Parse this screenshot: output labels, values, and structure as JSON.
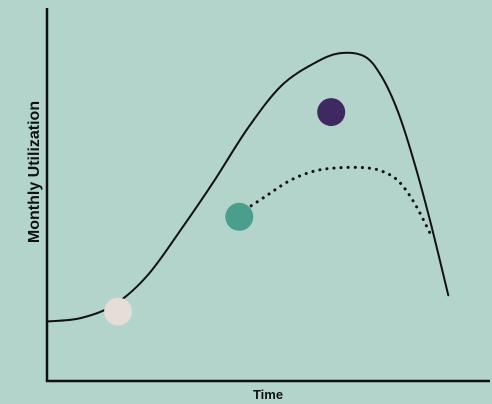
{
  "chart_data": {
    "type": "line",
    "xlabel": "Time",
    "ylabel": "Monthly Utilization",
    "xlim": [
      0,
      100
    ],
    "ylim": [
      0,
      100
    ],
    "grid": false,
    "series": [
      {
        "style": "solid",
        "x": [
          0,
          8,
          16,
          24,
          32,
          40,
          48,
          56,
          64,
          70,
          76,
          80,
          84,
          88,
          92,
          96
        ],
        "y": [
          17,
          18,
          22,
          31,
          45,
          60,
          76,
          89,
          96,
          99,
          98,
          92,
          81,
          65,
          46,
          25
        ]
      },
      {
        "style": "dotted",
        "x": [
          46,
          52,
          58,
          64,
          70,
          76,
          80,
          84,
          88,
          92
        ],
        "y": [
          50,
          55,
          60,
          63,
          64,
          64,
          63,
          60,
          53,
          43
        ]
      }
    ],
    "markers": [
      {
        "x": 17,
        "y": 20,
        "color": "#e4ddd8"
      },
      {
        "x": 46,
        "y": 49,
        "color": "#4a9e8b"
      },
      {
        "x": 68,
        "y": 81,
        "color": "#3f2961"
      }
    ]
  },
  "colors": {
    "background": "#b3d4cb",
    "line": "#111111",
    "axis": "#111111"
  }
}
